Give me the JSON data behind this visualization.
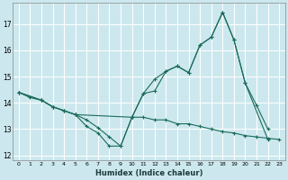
{
  "xlabel": "Humidex (Indice chaleur)",
  "bg_color": "#cce8ee",
  "grid_color": "#ffffff",
  "line_color": "#1a6b5a",
  "xlim": [
    -0.5,
    23.5
  ],
  "ylim": [
    11.8,
    17.8
  ],
  "xticks": [
    0,
    1,
    2,
    3,
    4,
    5,
    6,
    7,
    8,
    9,
    10,
    11,
    12,
    13,
    14,
    15,
    16,
    17,
    18,
    19,
    20,
    21,
    22,
    23
  ],
  "yticks": [
    12,
    13,
    14,
    15,
    16,
    17
  ],
  "line1_x": [
    0,
    1,
    2,
    3,
    4,
    5,
    6,
    7,
    8,
    9,
    10,
    11,
    12,
    13,
    14,
    15,
    16,
    17,
    18,
    19,
    20,
    21,
    22,
    23
  ],
  "line1_y": [
    14.4,
    14.2,
    14.1,
    13.85,
    13.7,
    13.55,
    13.1,
    12.85,
    12.35,
    12.35,
    13.45,
    13.45,
    13.35,
    13.35,
    13.2,
    13.2,
    13.1,
    13.0,
    12.9,
    12.85,
    12.75,
    12.7,
    12.65,
    12.6
  ],
  "line2_x": [
    0,
    2,
    3,
    4,
    5,
    6,
    7,
    8,
    9,
    10,
    11,
    12,
    13,
    14,
    15,
    16,
    17,
    18,
    19,
    20,
    21,
    22
  ],
  "line2_y": [
    14.4,
    14.1,
    13.85,
    13.7,
    13.55,
    13.35,
    13.05,
    12.7,
    12.35,
    13.45,
    14.35,
    14.9,
    15.2,
    15.4,
    15.15,
    16.2,
    16.5,
    17.45,
    16.4,
    14.75,
    13.9,
    13.0
  ],
  "line3_x": [
    0,
    2,
    3,
    4,
    5,
    10,
    11,
    12,
    13,
    14,
    15,
    16,
    17,
    18,
    19,
    20,
    22
  ],
  "line3_y": [
    14.4,
    14.1,
    13.85,
    13.7,
    13.55,
    13.45,
    14.35,
    14.45,
    15.2,
    15.4,
    15.15,
    16.2,
    16.5,
    17.45,
    16.4,
    14.75,
    12.6
  ]
}
